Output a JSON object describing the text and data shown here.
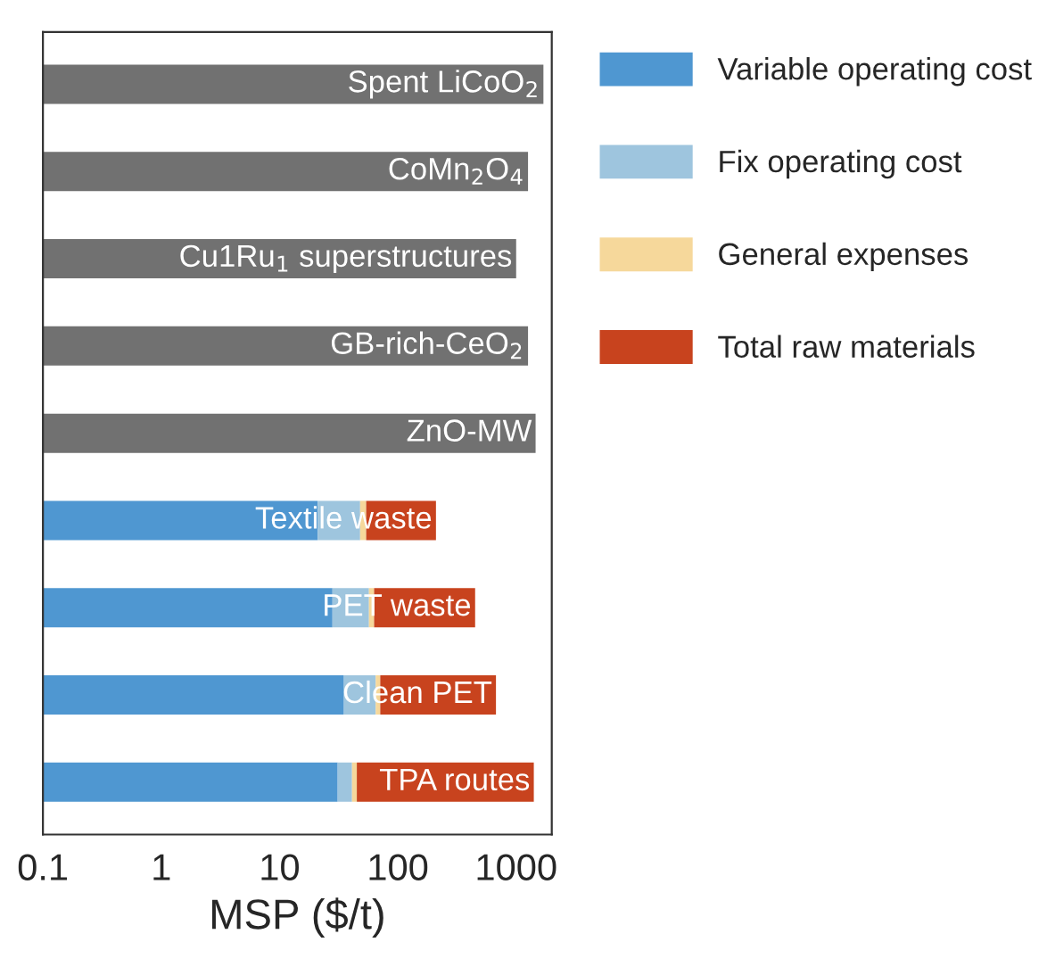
{
  "chart_data": {
    "type": "bar",
    "orientation": "horizontal",
    "stacked": true,
    "xlabel": "MSP ($/t)",
    "log": "x",
    "categories": [
      "Spent LiCoO$_{2}$",
      "CoMn$_{2}$O$_{4}$",
      "Cu1Ru$_{1}$ superstructures",
      "GB-rich-CeO$_{2}$",
      "ZnO-MW",
      "Textile waste",
      "PET waste",
      "Clean PET",
      "TPA routes"
    ],
    "series": [
      {
        "color": "#717171",
        "values": [
          1700,
          1260,
          1000,
          1260,
          1460,
          null,
          null,
          null,
          null
        ]
      },
      {
        "name": "Variable operating cost",
        "color": "#4f97d1",
        "values": [
          null,
          null,
          null,
          null,
          null,
          21,
          28,
          35,
          31
        ]
      },
      {
        "name": "Fix operating cost",
        "color": "#9ec5de",
        "values": [
          null,
          null,
          null,
          null,
          null,
          27,
          29,
          30,
          10
        ]
      },
      {
        "name": "General expenses",
        "color": "#f6d89b",
        "values": [
          null,
          null,
          null,
          null,
          null,
          6,
          6,
          6,
          4
        ]
      },
      {
        "name": "Total raw materials",
        "color": "#c8431e",
        "values": [
          null,
          null,
          null,
          null,
          null,
          156,
          387,
          604,
          1365
        ]
      }
    ],
    "xlim": [
      0.1,
      2000
    ],
    "xticks": [
      {
        "value": 0.1,
        "label": "0.1"
      },
      1,
      10,
      100,
      1000
    ],
    "tick_labels": "x",
    "legend": "right",
    "grid": false
  }
}
